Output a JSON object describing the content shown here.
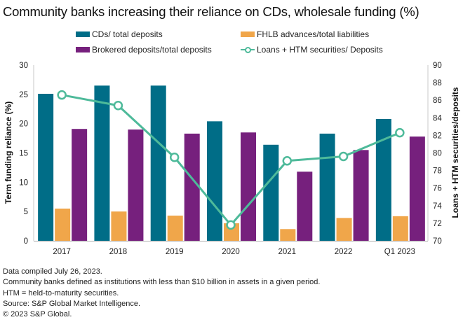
{
  "title": "Community banks increasing their reliance on CDs, wholesale funding (%)",
  "legend": [
    {
      "label": "CDs/ total deposits",
      "type": "bar",
      "color": "#006D87"
    },
    {
      "label": "FHLB advances/total liabilities",
      "type": "bar",
      "color": "#F0A64A"
    },
    {
      "label": "Brokered deposits/total deposits",
      "type": "bar",
      "color": "#76207D"
    },
    {
      "label": "Loans + HTM securities/ Deposits",
      "type": "line",
      "color": "#4EBA9A"
    }
  ],
  "notes": [
    "Data compiled July 26, 2023.",
    "Community banks defined as institutions with less than $10 billion in assets in a given period.",
    "HTM = held-to-maturity securities.",
    "Source: S&P Global Market Intelligence.",
    "© 2023 S&P Global."
  ],
  "chart_data": {
    "type": "bar",
    "title": "Community banks increasing their reliance on CDs, wholesale funding (%)",
    "categories": [
      "2017",
      "2018",
      "2019",
      "2020",
      "2021",
      "2022",
      "Q1 2023"
    ],
    "xlabel": "",
    "ylabel": "Term funding reliance (%)",
    "ylim": [
      0,
      30
    ],
    "yticks": [
      0,
      5,
      10,
      15,
      20,
      25,
      30
    ],
    "y2label": "Loans + HTM securities/deposits",
    "y2lim": [
      70,
      90
    ],
    "y2ticks": [
      70,
      72,
      74,
      76,
      78,
      80,
      82,
      84,
      86,
      88,
      90
    ],
    "grid": false,
    "legend_position": "top",
    "series": [
      {
        "name": "CDs/ total deposits",
        "type": "bar",
        "axis": "left",
        "color": "#006D87",
        "values": [
          25.1,
          26.5,
          26.5,
          20.4,
          16.4,
          18.3,
          20.8
        ]
      },
      {
        "name": "FHLB advances/total liabilities",
        "type": "bar",
        "axis": "left",
        "color": "#F0A64A",
        "values": [
          5.5,
          5.0,
          4.3,
          3.0,
          2.0,
          3.9,
          4.2
        ]
      },
      {
        "name": "Brokered deposits/total deposits",
        "type": "bar",
        "axis": "left",
        "color": "#76207D",
        "values": [
          19.1,
          19.0,
          18.3,
          18.5,
          11.8,
          15.5,
          17.8
        ]
      },
      {
        "name": "Loans + HTM securities/ Deposits",
        "type": "line",
        "axis": "right",
        "color": "#4EBA9A",
        "values": [
          86.6,
          85.4,
          79.5,
          71.8,
          79.1,
          79.6,
          82.3
        ]
      }
    ]
  }
}
